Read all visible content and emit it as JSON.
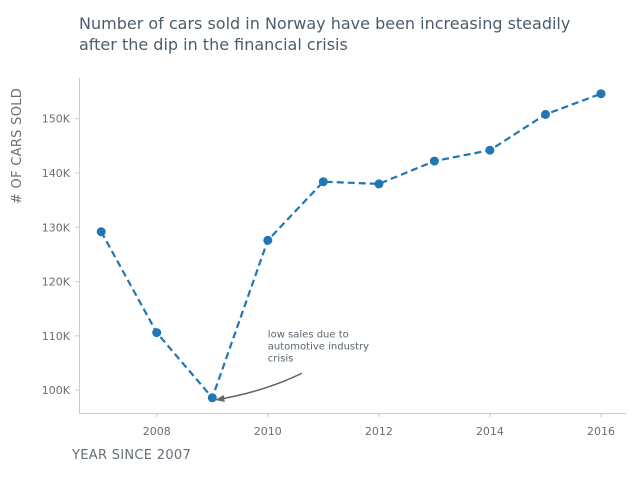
{
  "chart_data": {
    "type": "line",
    "title": "Number of cars sold in Norway have been increasing steadily after the dip in the financial crisis",
    "title_lines": [
      "Number of cars sold in Norway have been increasing steadily",
      "after the dip in the financial crisis"
    ],
    "xlabel": "YEAR SINCE 2007",
    "ylabel": "# OF CARS SOLD",
    "xlim": [
      2006.6,
      2016.45
    ],
    "ylim": [
      95800,
      157500
    ],
    "x_ticks": [
      2008,
      2010,
      2012,
      2014,
      2016
    ],
    "x_tick_labels": [
      "2008",
      "2010",
      "2012",
      "2014",
      "2016"
    ],
    "y_ticks": [
      100000,
      110000,
      120000,
      130000,
      140000,
      150000
    ],
    "y_tick_labels": [
      "100K",
      "110K",
      "120K",
      "130K",
      "140K",
      "150K"
    ],
    "grid": false,
    "line_style": "dashed",
    "marker": "circle",
    "series": [
      {
        "x": [
          2007,
          2008,
          2009,
          2010,
          2011,
          2012,
          2013,
          2014,
          2015,
          2016
        ],
        "values": [
          129200,
          110600,
          98600,
          127600,
          138400,
          138000,
          142200,
          144200,
          150800,
          154600
        ]
      }
    ],
    "annotation": {
      "text_lines": [
        "low sales due to",
        "automotive industry",
        "crisis"
      ],
      "target": [
        2009,
        98600
      ],
      "text_anchor": [
        2010,
        109000
      ]
    },
    "colors": {
      "series": "#1f77b4",
      "title": "#4a5d6e",
      "axis_text": "#666f78",
      "annotation_arrow": "#666666",
      "spine": "#c8ccd0"
    }
  }
}
